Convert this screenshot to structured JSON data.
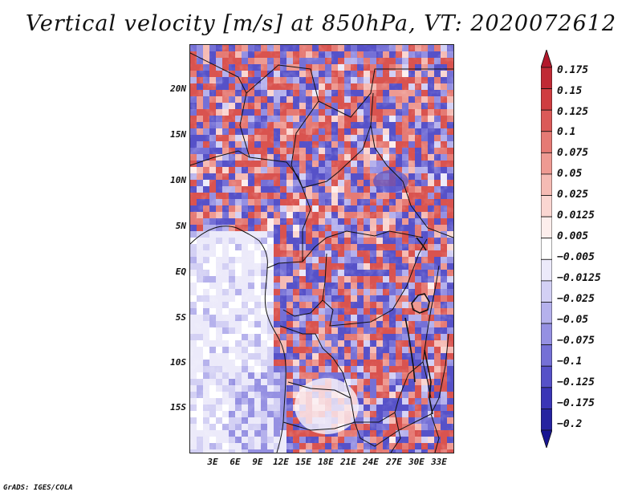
{
  "title": "Vertical velocity [m/s] at 850hPa, VT: 2020072612",
  "credit": "GrADS: IGES/COLA",
  "lat_labels": [
    "20N",
    "15N",
    "10N",
    "5N",
    "EQ",
    "5S",
    "10S",
    "15S"
  ],
  "lon_labels": [
    "3E",
    "6E",
    "9E",
    "12E",
    "15E",
    "18E",
    "21E",
    "24E",
    "27E",
    "30E",
    "33E"
  ],
  "colorbar": {
    "labels": [
      "0.175",
      "0.15",
      "0.125",
      "0.1",
      "0.075",
      "0.05",
      "0.025",
      "0.0125",
      "0.005",
      "−0.005",
      "−0.0125",
      "−0.025",
      "−0.05",
      "−0.075",
      "−0.1",
      "−0.125",
      "−0.175",
      "−0.2"
    ],
    "colors": [
      "#b2182b",
      "#c02a35",
      "#cf3d40",
      "#db5a58",
      "#e57a74",
      "#ee9a92",
      "#f5bbb4",
      "#fad6d1",
      "#fdeeec",
      "#ffffff",
      "#eceafa",
      "#d3d0f4",
      "#b5b1ec",
      "#9590e2",
      "#7570d6",
      "#5651c8",
      "#3a35b6",
      "#2623a0",
      "#181592"
    ]
  }
}
